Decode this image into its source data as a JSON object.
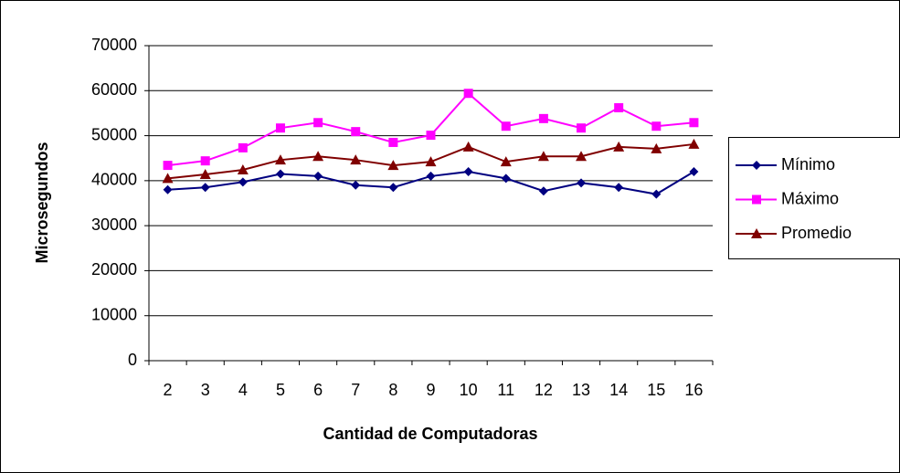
{
  "chart_data": {
    "type": "line",
    "x_label": "Cantidad de Computadoras",
    "y_label": "Microsegundos",
    "categories": [
      "2",
      "3",
      "4",
      "5",
      "6",
      "7",
      "8",
      "9",
      "10",
      "11",
      "12",
      "13",
      "14",
      "15",
      "16"
    ],
    "series": [
      {
        "name": "Mínimo",
        "color": "#000080",
        "marker": "diamond",
        "values": [
          38000,
          38500,
          39700,
          41500,
          41000,
          39000,
          38500,
          41000,
          42000,
          40500,
          37700,
          39500,
          38500,
          37000,
          42000
        ]
      },
      {
        "name": "Máximo",
        "color": "#ff00ff",
        "marker": "square",
        "values": [
          43400,
          44400,
          47300,
          51700,
          52900,
          50900,
          48500,
          50100,
          59400,
          52100,
          53800,
          51700,
          56200,
          52100,
          52900
        ]
      },
      {
        "name": "Promedio",
        "color": "#800000",
        "marker": "triangle",
        "values": [
          40500,
          41400,
          42400,
          44600,
          45400,
          44600,
          43400,
          44200,
          47500,
          44200,
          45400,
          45400,
          47500,
          47100,
          48100
        ]
      }
    ],
    "ylim": [
      0,
      70000
    ],
    "yticks": [
      0,
      10000,
      20000,
      30000,
      40000,
      50000,
      60000,
      70000
    ],
    "grid": true,
    "legend": "right"
  }
}
